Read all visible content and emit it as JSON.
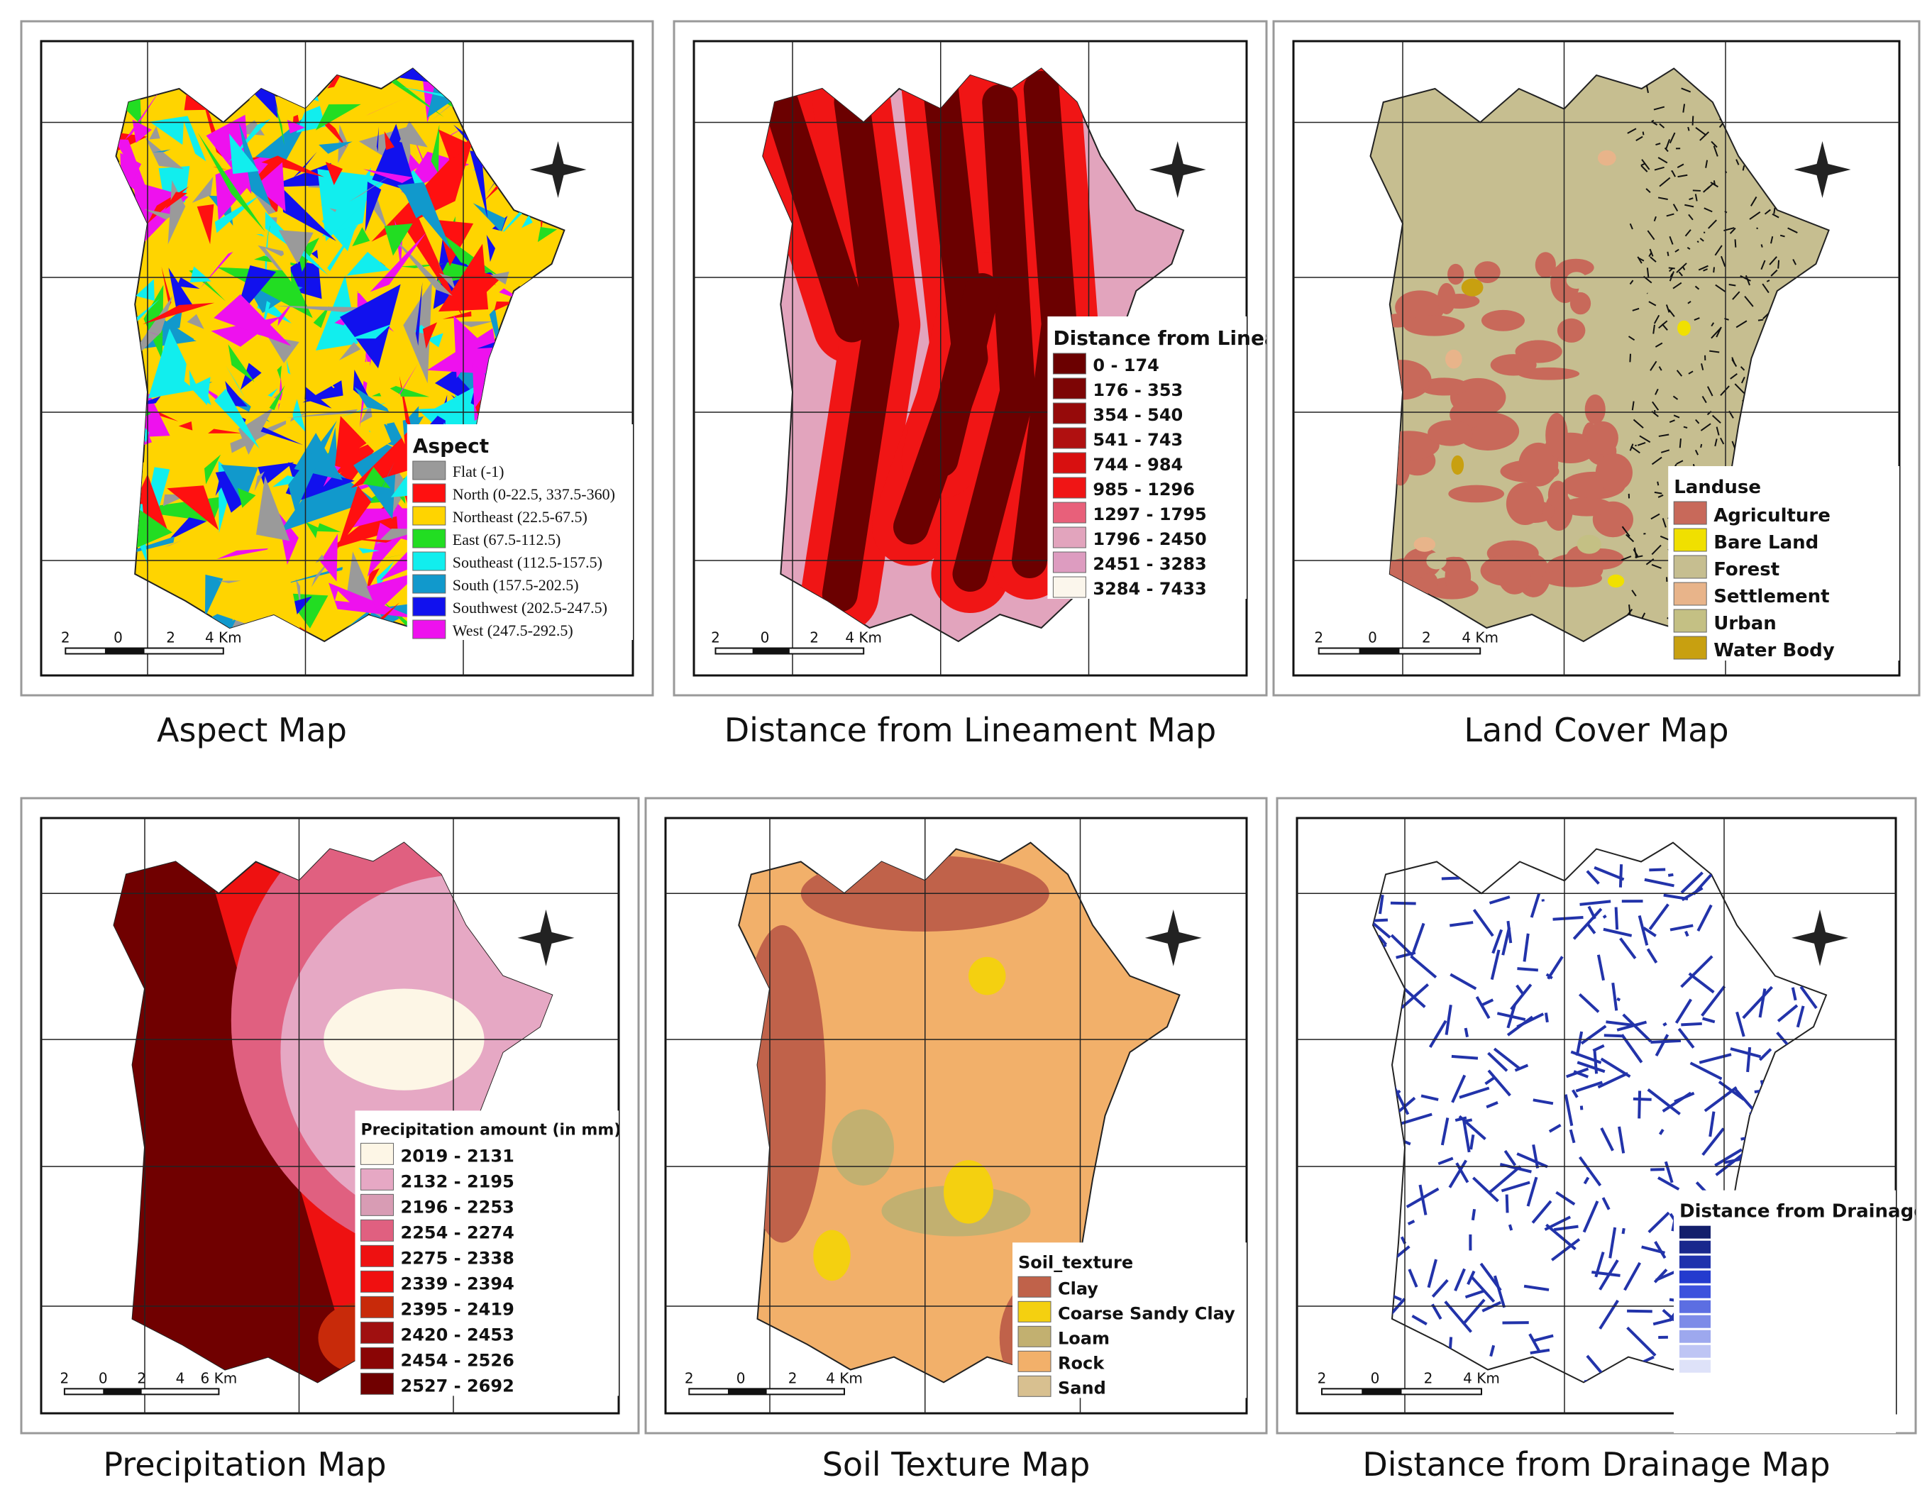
{
  "maps": [
    {
      "caption": "Aspect Map",
      "scale": [
        "2",
        "0",
        "2",
        "4 Km"
      ],
      "legend": {
        "title": "Aspect",
        "items": [
          {
            "label": "Flat (-1)",
            "color": "#9a9a9a"
          },
          {
            "label": "North (0-22.5, 337.5-360)",
            "color": "#ff1010"
          },
          {
            "label": "Northeast (22.5-67.5)",
            "color": "#ffd400"
          },
          {
            "label": "East (67.5-112.5)",
            "color": "#22dd22"
          },
          {
            "label": "Southeast (112.5-157.5)",
            "color": "#11eeee"
          },
          {
            "label": "South (157.5-202.5)",
            "color": "#1199cc"
          },
          {
            "label": "Southwest (202.5-247.5)",
            "color": "#1111ee"
          },
          {
            "label": "West (247.5-292.5)",
            "color": "#ee11ee"
          }
        ]
      }
    },
    {
      "caption": "Distance from Lineament Map",
      "scale": [
        "2",
        "0",
        "2",
        "4 Km"
      ],
      "legend": {
        "title": "Distance from Lineament",
        "items": [
          {
            "label": "0 - 174",
            "color": "#6b0000"
          },
          {
            "label": "176 - 353",
            "color": "#7d0505"
          },
          {
            "label": "354 - 540",
            "color": "#960a0a"
          },
          {
            "label": "541 - 743",
            "color": "#b01010"
          },
          {
            "label": "744 - 984",
            "color": "#d81010"
          },
          {
            "label": "985 - 1296",
            "color": "#f01515"
          },
          {
            "label": "1297 - 1795",
            "color": "#e8607a"
          },
          {
            "label": "1796 - 2450",
            "color": "#e2a4bd"
          },
          {
            "label": "2451 - 3283",
            "color": "#dd9cc0"
          },
          {
            "label": "3284 - 7433",
            "color": "#fbf6ec"
          }
        ]
      }
    },
    {
      "caption": "Land Cover Map",
      "scale": [
        "2",
        "0",
        "2",
        "4 Km"
      ],
      "legend": {
        "title": "Landuse",
        "items": [
          {
            "label": "Agriculture",
            "color": "#c8695a"
          },
          {
            "label": "Bare Land",
            "color": "#f0e000"
          },
          {
            "label": "Forest",
            "color": "#c6be90"
          },
          {
            "label": "Settlement",
            "color": "#e8b48a"
          },
          {
            "label": "Urban",
            "color": "#c4c084"
          },
          {
            "label": "Water Body",
            "color": "#c8a010"
          }
        ]
      }
    },
    {
      "caption": "Precipitation Map",
      "scale": [
        "2",
        "0",
        "2",
        "4",
        "6 Km"
      ],
      "legend": {
        "title": "Precipitation amount (in mm)",
        "items": [
          {
            "label": "2019 - 2131",
            "color": "#fdf6e6"
          },
          {
            "label": "2132 - 2195",
            "color": "#e6a8c4"
          },
          {
            "label": "2196 - 2253",
            "color": "#d89cb4"
          },
          {
            "label": "2254 - 2274",
            "color": "#e06080"
          },
          {
            "label": "2275 - 2338",
            "color": "#ee1111"
          },
          {
            "label": "2339 - 2394",
            "color": "#f01010"
          },
          {
            "label": "2395 - 2419",
            "color": "#c82a0a"
          },
          {
            "label": "2420 - 2453",
            "color": "#a01010"
          },
          {
            "label": "2454 - 2526",
            "color": "#8a0505"
          },
          {
            "label": "2527 - 2692",
            "color": "#700000"
          }
        ]
      }
    },
    {
      "caption": "Soil Texture Map",
      "scale": [
        "2",
        "0",
        "2",
        "4 Km"
      ],
      "legend": {
        "title": "Soil_texture",
        "items": [
          {
            "label": "Clay",
            "color": "#c0624a"
          },
          {
            "label": "Coarse Sandy Clay",
            "color": "#f4d010"
          },
          {
            "label": "Loam",
            "color": "#c2b070"
          },
          {
            "label": "Rock",
            "color": "#f2b06a"
          },
          {
            "label": "Sand",
            "color": "#d8c090"
          }
        ]
      }
    },
    {
      "caption": "Distance from Drainage Map",
      "scale": [
        "2",
        "0",
        "2",
        "4 Km"
      ],
      "legend": {
        "title": "Distance from Drainage (m)",
        "items": []
      }
    }
  ]
}
